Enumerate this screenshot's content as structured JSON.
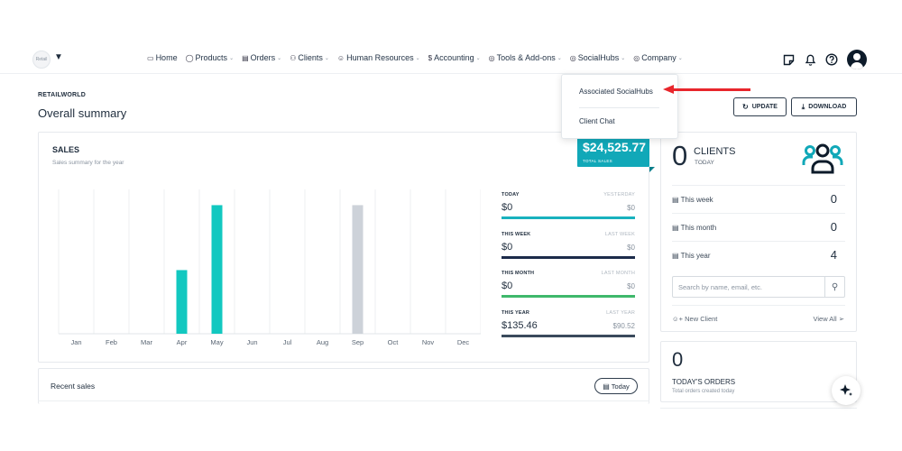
{
  "app": {
    "logo_text": "Retail"
  },
  "nav": {
    "items": [
      {
        "icon": "monitor-icon",
        "label": "Home",
        "dropdown": false
      },
      {
        "icon": "box-icon",
        "label": "Products",
        "dropdown": true
      },
      {
        "icon": "receipt-icon",
        "label": "Orders",
        "dropdown": true
      },
      {
        "icon": "users-icon",
        "label": "Clients",
        "dropdown": true
      },
      {
        "icon": "user-hr-icon",
        "label": "Human Resources",
        "dropdown": true
      },
      {
        "icon": "dollar-icon",
        "label": "Accounting",
        "dropdown": true
      },
      {
        "icon": "tools-icon",
        "label": "Tools & Add-ons",
        "dropdown": true
      },
      {
        "icon": "hub-icon",
        "label": "SocialHubs",
        "dropdown": true
      },
      {
        "icon": "company-icon",
        "label": "Company",
        "dropdown": true
      }
    ],
    "socialhubs_menu": [
      "Associated SocialHubs",
      "Client Chat"
    ]
  },
  "header": {
    "breadcrumb": "RETAILWORLD",
    "title": "Overall summary",
    "update_label": "UPDATE",
    "download_label": "DOWNLOAD"
  },
  "sales": {
    "title": "SALES",
    "subtitle": "Sales summary for the year",
    "total_amount": "$24,525.77",
    "total_label": "TOTAL SALES",
    "stats": [
      {
        "label": "TODAY",
        "compare_label": "YESTERDAY",
        "value": "$0",
        "compare_value": "$0",
        "color": "#19b2be"
      },
      {
        "label": "THIS WEEK",
        "compare_label": "LAST WEEK",
        "value": "$0",
        "compare_value": "$0",
        "color": "#1c2b4a"
      },
      {
        "label": "THIS MONTH",
        "compare_label": "LAST MONTH",
        "value": "$0",
        "compare_value": "$0",
        "color": "#3fb86b"
      },
      {
        "label": "THIS YEAR",
        "compare_label": "LAST YEAR",
        "value": "$135.46",
        "compare_value": "$90.52",
        "color": "#3a4a5c"
      }
    ]
  },
  "chart_data": {
    "type": "bar",
    "categories": [
      "Jan",
      "Feb",
      "Mar",
      "Apr",
      "May",
      "Jun",
      "Jul",
      "Aug",
      "Sep",
      "Oct",
      "Nov",
      "Dec"
    ],
    "values": [
      0,
      0,
      0,
      0.49,
      0.99,
      0,
      0,
      0,
      0.99,
      0,
      0,
      0
    ],
    "value_scale": "relative (no y-axis printed)",
    "bar_colors": [
      "#12c8c0",
      "#12c8c0",
      "#12c8c0",
      "#12c8c0",
      "#12c8c0",
      "#12c8c0",
      "#12c8c0",
      "#12c8c0",
      "#cdd2d9",
      "#12c8c0",
      "#12c8c0",
      "#12c8c0"
    ],
    "grid": true
  },
  "clients": {
    "count": "0",
    "label": "CLIENTS",
    "sub": "TODAY",
    "rows": [
      {
        "label": "This week",
        "value": "0"
      },
      {
        "label": "This month",
        "value": "0"
      },
      {
        "label": "This year",
        "value": "4"
      }
    ],
    "search_placeholder": "Search by name, email, etc.",
    "new_client_label": "New Client",
    "view_all_label": "View All"
  },
  "orders": {
    "count": "0",
    "label": "TODAY'S ORDERS",
    "sub": "Total orders created today"
  },
  "recent_sales": {
    "title": "Recent sales",
    "today_label": "Today"
  },
  "colors": {
    "accent": "#11a8b8",
    "arrow": "#e8262c",
    "dark": "#1f2d3d"
  }
}
